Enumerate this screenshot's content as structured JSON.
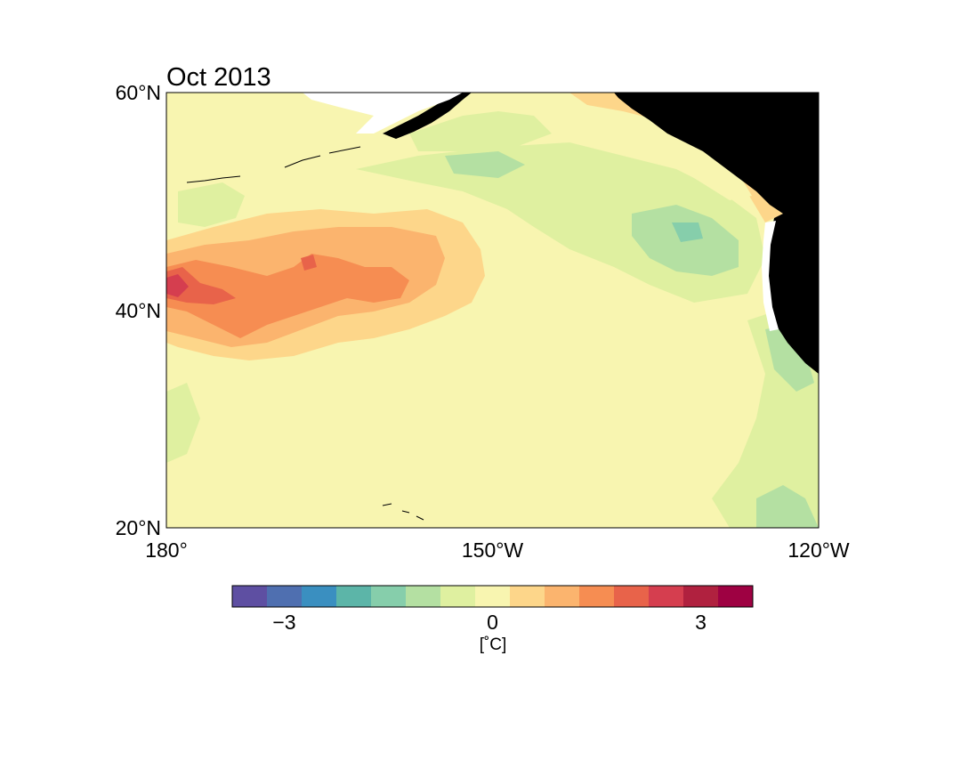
{
  "title": "Oct 2013",
  "map": {
    "lat_ticks": [
      {
        "value": 60,
        "label": "60°N"
      },
      {
        "value": 40,
        "label": "40°N"
      },
      {
        "value": 20,
        "label": "20°N"
      }
    ],
    "lon_ticks": [
      {
        "value": 180,
        "label": "180°"
      },
      {
        "value": 150,
        "label": "150°W"
      },
      {
        "value": 120,
        "label": "120°W"
      }
    ],
    "land_color": "#000000",
    "background_color": "#f8f5b0"
  },
  "colorbar": {
    "unit_label": "[$^\\circ$C]",
    "unit_text": "[˚C]",
    "ticks": [
      {
        "value": -3,
        "label": "−3"
      },
      {
        "value": 0,
        "label": "0"
      },
      {
        "value": 3,
        "label": "3"
      }
    ],
    "range": [
      -3.75,
      3.75
    ],
    "colors": [
      "#5e4fa2",
      "#4f6fb0",
      "#3a8fc0",
      "#5cb5a8",
      "#86ceab",
      "#b4e0a2",
      "#dff0a0",
      "#f8f5b0",
      "#fdd68a",
      "#fbb46e",
      "#f68d52",
      "#e8634a",
      "#d53e4f",
      "#b0213f",
      "#9e0142"
    ]
  }
}
